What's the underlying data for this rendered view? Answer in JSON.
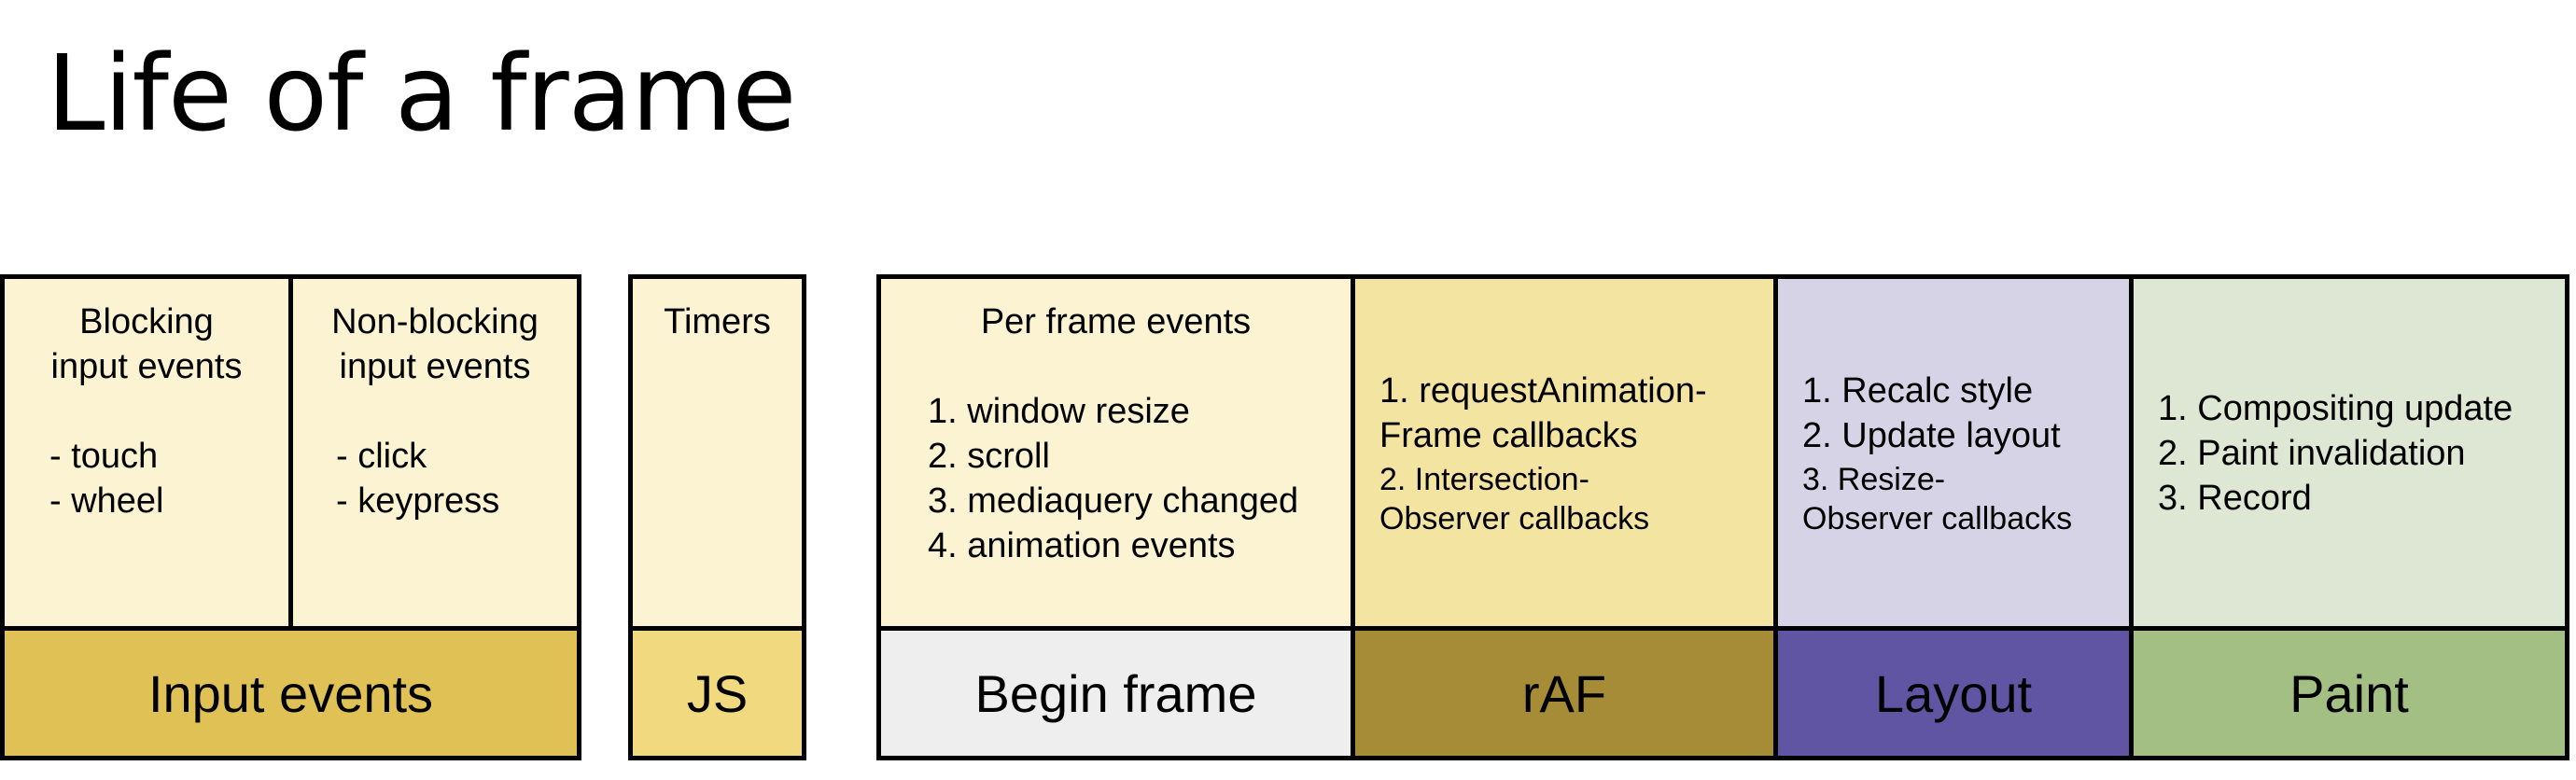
{
  "title": "Life of a frame",
  "input": {
    "blocking_title": "Blocking\ninput events",
    "blocking_items": [
      "- touch",
      "- wheel"
    ],
    "nonblocking_title": "Non-blocking\ninput events",
    "nonblocking_items": [
      "- click",
      "- keypress"
    ],
    "label": "Input events",
    "color_top": "#fbf3d1",
    "color_bottom": "#dfc155"
  },
  "js": {
    "title": "Timers",
    "label": "JS",
    "color_top": "#fbf3d1",
    "color_bottom": "#f1d97f"
  },
  "begin_frame": {
    "title": "Per frame events",
    "items": [
      "1. window resize",
      "2. scroll",
      "3. mediaquery changed",
      "4. animation events"
    ],
    "label": "Begin frame",
    "color_top": "#fbf3d1",
    "color_bottom": "#eeeeee"
  },
  "raf": {
    "item1": "1. requestAnimation-\nFrame callbacks",
    "item2": "2. Intersection-\nObserver callbacks",
    "label": "rAF",
    "color_top": "#f4e4a2",
    "color_bottom": "#a68c36"
  },
  "layout": {
    "item1": "1. Recalc style\n2. Update layout",
    "item2": "3. Resize-\nObserver callbacks",
    "label": "Layout",
    "color_top": "#d6d3e6",
    "color_bottom": "#6055a3"
  },
  "paint": {
    "items": [
      "1. Compositing update",
      "2. Paint invalidation",
      "3. Record"
    ],
    "label": "Paint",
    "color_top": "#dee7d3",
    "color_bottom": "#a3bf84"
  }
}
